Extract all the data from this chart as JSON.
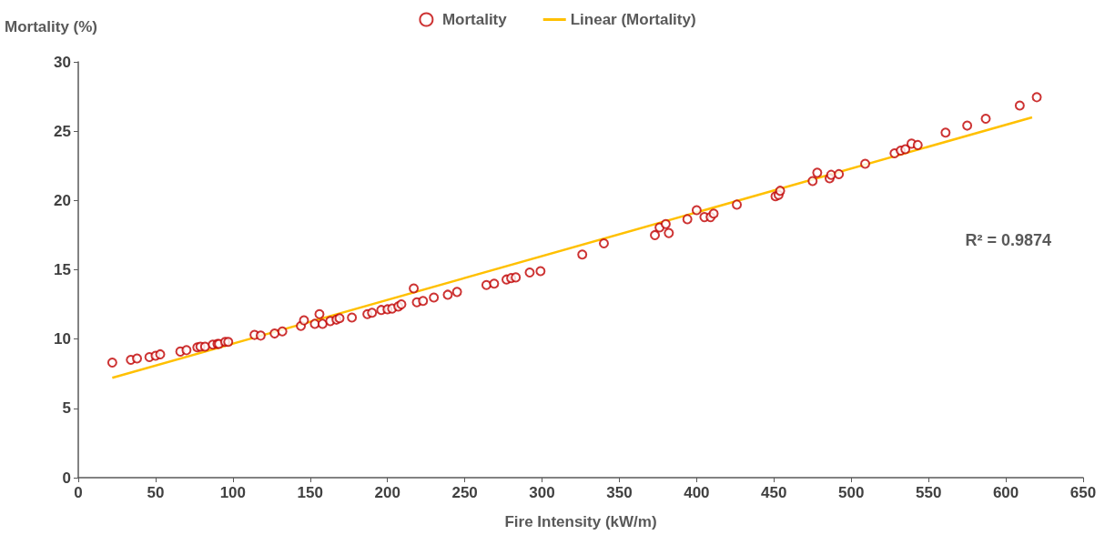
{
  "chart_data": {
    "type": "scatter",
    "xlabel": "Fire Intensity (kW/m)",
    "ylabel": "Mortality (%)",
    "annotations": [
      "R² = 0.9874"
    ],
    "xlim": [
      0,
      650
    ],
    "xticks": [
      0,
      50,
      100,
      150,
      200,
      250,
      300,
      350,
      400,
      450,
      500,
      550,
      600,
      650
    ],
    "ylim": [
      0,
      30
    ],
    "yticks": [
      0,
      5,
      10,
      15,
      20,
      25,
      30
    ],
    "grid": false,
    "legend": "top",
    "series": [
      {
        "name": "Mortality",
        "marker": "circle",
        "color": "#c00000",
        "x": [
          22,
          34,
          38,
          46,
          50,
          53,
          66,
          70,
          77,
          79,
          82,
          87,
          90,
          91,
          95,
          97,
          114,
          118,
          127,
          132,
          144,
          146,
          153,
          156,
          158,
          163,
          167,
          169,
          177,
          187,
          190,
          196,
          200,
          203,
          207,
          209,
          217,
          219,
          223,
          230,
          239,
          245,
          264,
          269,
          277,
          280,
          283,
          292,
          299,
          326,
          340,
          373,
          376,
          380,
          382,
          394,
          400,
          405,
          409,
          411,
          426,
          451,
          453,
          454,
          475,
          478,
          486,
          487,
          492,
          509,
          528,
          532,
          535,
          539,
          543,
          561,
          575,
          587,
          609,
          620
        ],
        "values": [
          8.3,
          8.5,
          8.6,
          8.7,
          8.8,
          8.9,
          9.1,
          9.2,
          9.4,
          9.45,
          9.45,
          9.6,
          9.65,
          9.65,
          9.8,
          9.8,
          10.3,
          10.25,
          10.4,
          10.55,
          10.95,
          11.35,
          11.1,
          11.8,
          11.1,
          11.3,
          11.4,
          11.5,
          11.55,
          11.8,
          11.9,
          12.1,
          12.15,
          12.2,
          12.35,
          12.5,
          13.65,
          12.65,
          12.75,
          13.0,
          13.2,
          13.4,
          13.9,
          14.0,
          14.3,
          14.4,
          14.45,
          14.8,
          14.9,
          16.1,
          16.9,
          17.5,
          18.05,
          18.3,
          17.65,
          18.65,
          19.3,
          18.8,
          18.8,
          19.05,
          19.7,
          20.3,
          20.4,
          20.7,
          21.4,
          22.0,
          21.6,
          21.85,
          21.9,
          22.65,
          23.4,
          23.6,
          23.7,
          24.1,
          24.0,
          24.9,
          25.4,
          25.9,
          26.85,
          27.45
        ]
      },
      {
        "name": "Linear (Mortality)",
        "type": "line",
        "marker": "none",
        "color": "#ffc000",
        "x": [
          22,
          617
        ],
        "values": [
          7.2,
          26.0
        ]
      }
    ]
  }
}
